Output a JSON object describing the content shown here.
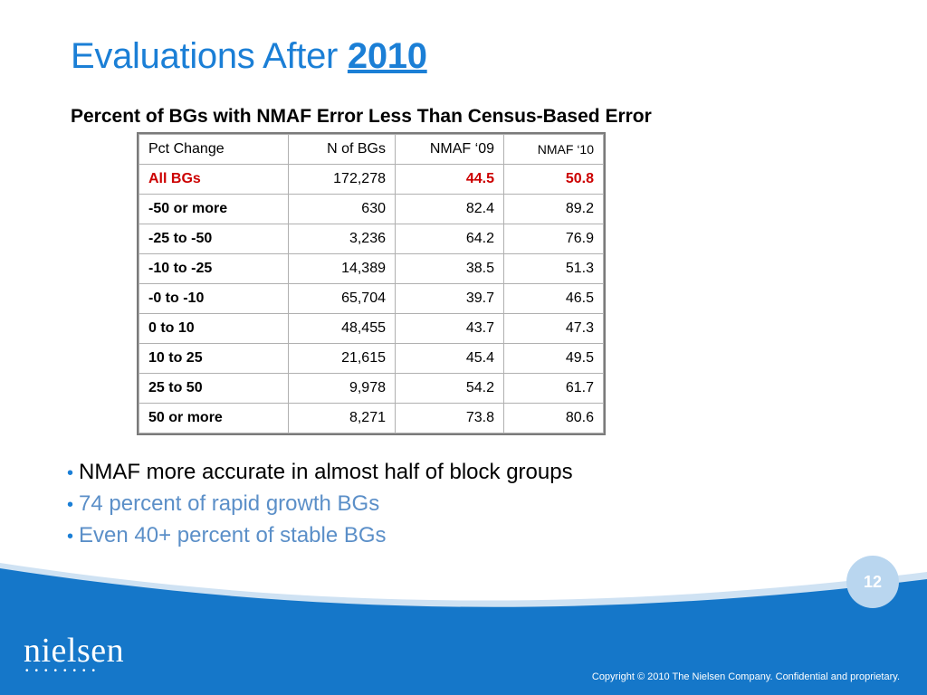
{
  "title": {
    "text": "Evaluations After ",
    "year": "2010"
  },
  "subtitle": "Percent of BGs with NMAF Error Less Than Census-Based Error",
  "table": {
    "headers": [
      "Pct Change",
      "N of BGs",
      "NMAF ‘09",
      "NMAF ‘10"
    ],
    "rows": [
      [
        "All BGs",
        "172,278",
        "44.5",
        "50.8"
      ],
      [
        "-50 or more",
        "630",
        "82.4",
        "89.2"
      ],
      [
        "-25 to -50",
        "3,236",
        "64.2",
        "76.9"
      ],
      [
        "-10 to -25",
        "14,389",
        "38.5",
        "51.3"
      ],
      [
        "-0 to -10",
        "65,704",
        "39.7",
        "46.5"
      ],
      [
        "0 to 10",
        "48,455",
        "43.7",
        "47.3"
      ],
      [
        "10 to 25",
        "21,615",
        "45.4",
        "49.5"
      ],
      [
        "25 to 50",
        "9,978",
        "54.2",
        "61.7"
      ],
      [
        "50 or more",
        "8,271",
        "73.8",
        "80.6"
      ]
    ]
  },
  "bullets": [
    "NMAF more accurate in almost half of block groups",
    "74 percent of rapid growth BGs",
    "Even 40+ percent of stable BGs"
  ],
  "page_number": "12",
  "logo": {
    "text": "nielsen",
    "dots": "••••••••"
  },
  "copyright": "Copyright © 2010 The Nielsen Company. Confidential and proprietary.",
  "colors": {
    "accent": "#1b7fd6",
    "footer": "#1577c9",
    "highlight": "#cc0000"
  }
}
